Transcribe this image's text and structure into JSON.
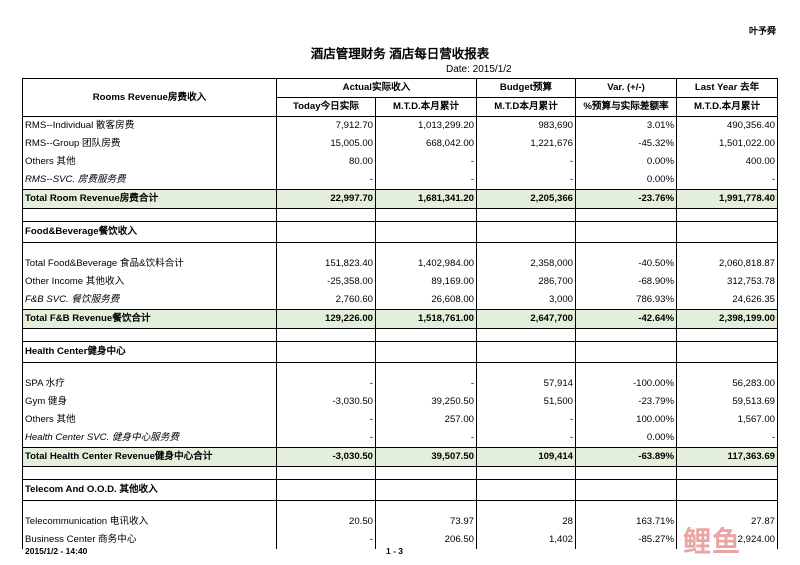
{
  "header": {
    "author": "叶予舜",
    "title": "酒店管理财务  酒店每日营收报表",
    "date": "Date: 2015/1/2"
  },
  "columns": {
    "first_col": "Rooms Revenue房费收入",
    "actual_group": "Actual实际收入",
    "budget_group": "Budget预算",
    "var_group": "Var. (+/-)",
    "lastyear_group": "Last Year 去年",
    "today": "Today今日实际",
    "mtd_actual": "M.T.D.本月累计",
    "mtd_budget": "M.T.D本月累计",
    "var_pct": "%预算与实际差额率",
    "mtd_lastyear": "M.T.D.本月累计"
  },
  "rooms": [
    {
      "label": "RMS--Individual  散客房费",
      "today": "7,912.70",
      "mtd": "1,013,299.20",
      "budget": "983,690",
      "var": "3.01%",
      "ly": "490,356.40"
    },
    {
      "label": "RMS--Group  团队房费",
      "today": "15,005.00",
      "mtd": "668,042.00",
      "budget": "1,221,676",
      "var": "-45.32%",
      "ly": "1,501,022.00"
    },
    {
      "label": "Others  其他",
      "today": "80.00",
      "mtd": "-",
      "budget": "-",
      "var": "0.00%",
      "ly": "400.00"
    },
    {
      "label": "RMS--SVC. 房费服务费",
      "today": "-",
      "mtd": "-",
      "budget": "-",
      "var": "0.00%",
      "ly": "-"
    }
  ],
  "rooms_total": {
    "label": "Total Room Revenue房费合计",
    "today": "22,997.70",
    "mtd": "1,681,341.20",
    "budget": "2,205,366",
    "var": "-23.76%",
    "ly": "1,991,778.40"
  },
  "fb_section": "Food&Beverage餐饮收入",
  "fb": [
    {
      "label": "Total Food&Beverage  食品&饮料合计",
      "today": "151,823.40",
      "mtd": "1,402,984.00",
      "budget": "2,358,000",
      "var": "-40.50%",
      "ly": "2,060,818.87"
    },
    {
      "label": "Other Income  其他收入",
      "today": "-25,358.00",
      "mtd": "89,169.00",
      "budget": "286,700",
      "var": "-68.90%",
      "ly": "312,753.78"
    },
    {
      "label": "F&B SVC.  餐饮服务费",
      "today": "2,760.60",
      "mtd": "26,608.00",
      "budget": "3,000",
      "var": "786.93%",
      "ly": "24,626.35"
    }
  ],
  "fb_total": {
    "label": "Total F&B Revenue餐饮合计",
    "today": "129,226.00",
    "mtd": "1,518,761.00",
    "budget": "2,647,700",
    "var": "-42.64%",
    "ly": "2,398,199.00"
  },
  "health_section": "Health Center健身中心",
  "health": [
    {
      "label": "SPA  水疗",
      "today": "-",
      "mtd": "-",
      "budget": "57,914",
      "var": "-100.00%",
      "ly": "56,283.00"
    },
    {
      "label": "Gym  健身",
      "today": "-3,030.50",
      "mtd": "39,250.50",
      "budget": "51,500",
      "var": "-23.79%",
      "ly": "59,513.69"
    },
    {
      "label": "Others  其他",
      "today": "-",
      "mtd": "257.00",
      "budget": "-",
      "var": "100.00%",
      "ly": "1,567.00"
    },
    {
      "label": "Health Center SVC.  健身中心服务费",
      "today": "-",
      "mtd": "-",
      "budget": "-",
      "var": "0.00%",
      "ly": "-"
    }
  ],
  "health_total": {
    "label": "Total Health Center Revenue健身中心合计",
    "today": "-3,030.50",
    "mtd": "39,507.50",
    "budget": "109,414",
    "var": "-63.89%",
    "ly": "117,363.69"
  },
  "telecom_section": "Telecom And O.O.D. 其他收入",
  "telecom": [
    {
      "label": "Telecommunication  电讯收入",
      "today": "20.50",
      "mtd": "73.97",
      "budget": "28",
      "var": "163.71%",
      "ly": "27.87"
    },
    {
      "label": "Business Center  商务中心",
      "today": "-",
      "mtd": "206.50",
      "budget": "1,402",
      "var": "-85.27%",
      "ly": "2,924.00"
    }
  ],
  "footer": {
    "timestamp": "2015/1/2  -  14:40",
    "page": "1  -  3"
  },
  "watermark": "鲤鱼"
}
